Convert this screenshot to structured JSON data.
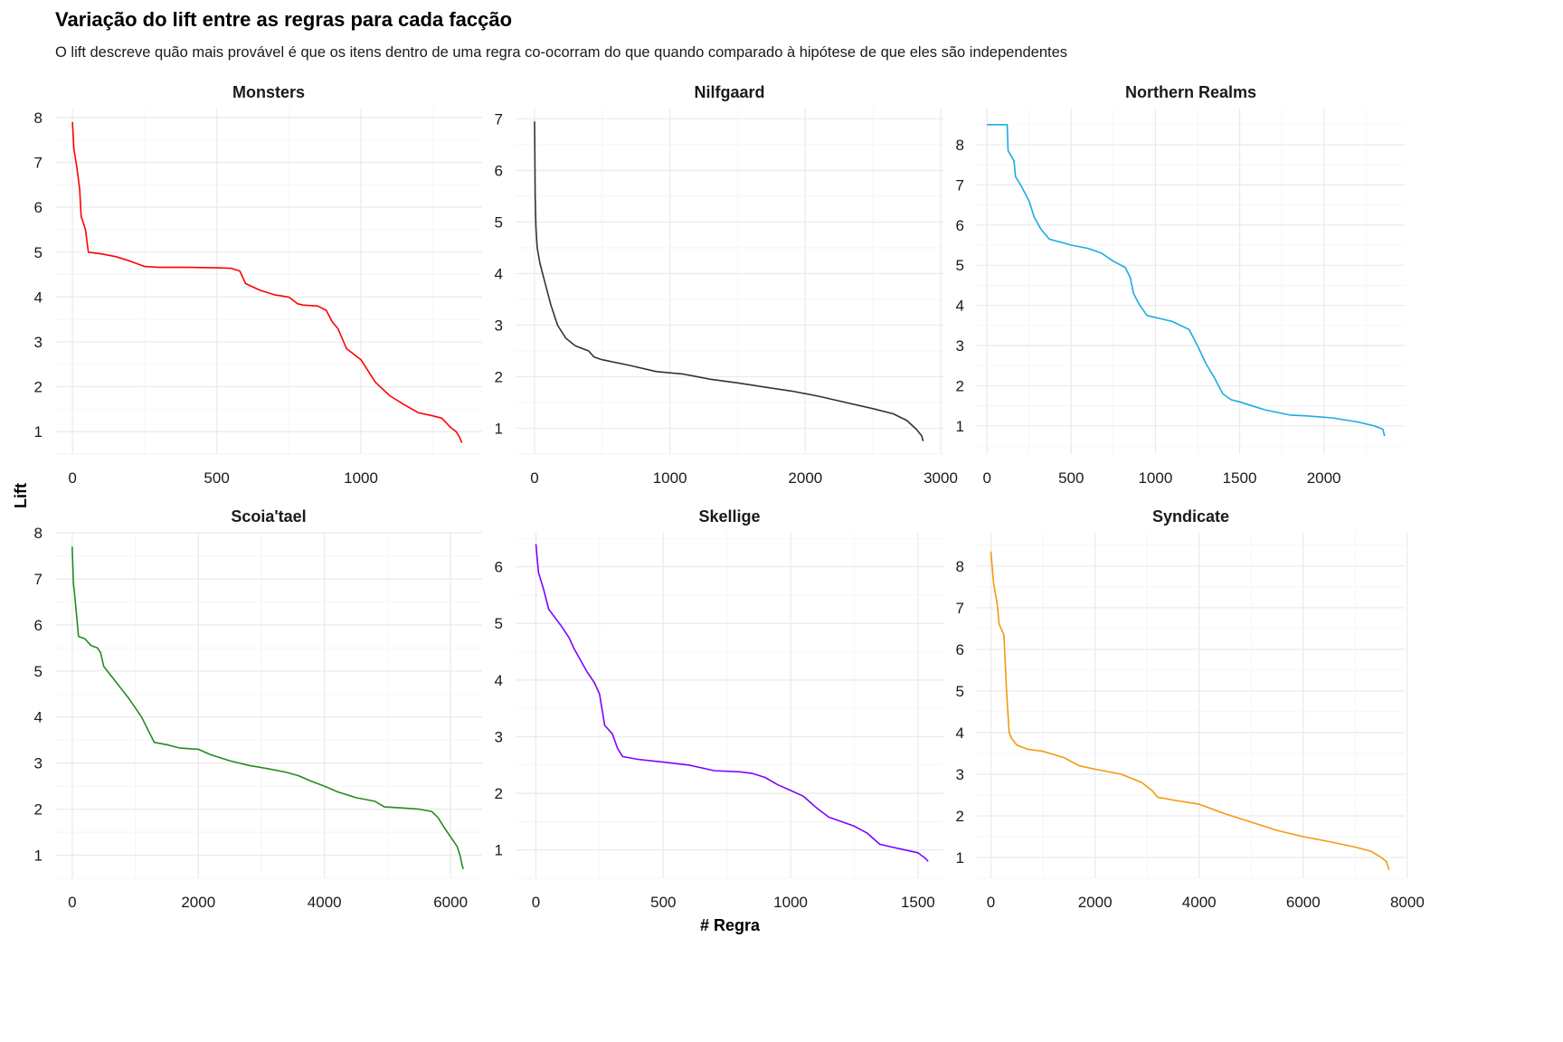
{
  "title": "Variação do lift entre as regras para cada facção",
  "subtitle": "O lift descreve quão mais provável é que os itens dentro de uma regra co-ocorram do que quando comparado à hipótese de que eles são independentes",
  "chart_data": {
    "type": "line",
    "layout": "facet-grid-2x3",
    "xlabel": "# Regra",
    "ylabel": "Lift",
    "grid": true,
    "facets": [
      {
        "name": "Monsters",
        "color": "#ff0000",
        "xlim": [
          -60,
          1420
        ],
        "ylim": [
          0.5,
          8.2
        ],
        "xticks": [
          0,
          500,
          1000
        ],
        "yticks": [
          1,
          2,
          3,
          4,
          5,
          6,
          7,
          8
        ],
        "points": [
          [
            0,
            7.9
          ],
          [
            5,
            7.3
          ],
          [
            15,
            6.9
          ],
          [
            25,
            6.4
          ],
          [
            30,
            5.8
          ],
          [
            45,
            5.5
          ],
          [
            55,
            5.0
          ],
          [
            100,
            4.96
          ],
          [
            150,
            4.9
          ],
          [
            200,
            4.8
          ],
          [
            250,
            4.68
          ],
          [
            300,
            4.66
          ],
          [
            400,
            4.66
          ],
          [
            500,
            4.65
          ],
          [
            550,
            4.64
          ],
          [
            580,
            4.58
          ],
          [
            600,
            4.3
          ],
          [
            650,
            4.15
          ],
          [
            700,
            4.05
          ],
          [
            750,
            4.0
          ],
          [
            780,
            3.85
          ],
          [
            800,
            3.82
          ],
          [
            850,
            3.8
          ],
          [
            880,
            3.7
          ],
          [
            900,
            3.45
          ],
          [
            920,
            3.3
          ],
          [
            950,
            2.85
          ],
          [
            1000,
            2.6
          ],
          [
            1050,
            2.1
          ],
          [
            1100,
            1.8
          ],
          [
            1150,
            1.6
          ],
          [
            1200,
            1.42
          ],
          [
            1250,
            1.35
          ],
          [
            1280,
            1.3
          ],
          [
            1310,
            1.1
          ],
          [
            1330,
            1.0
          ],
          [
            1340,
            0.9
          ],
          [
            1350,
            0.75
          ]
        ]
      },
      {
        "name": "Nilfgaard",
        "color": "#333333",
        "xlim": [
          -140,
          3020
        ],
        "ylim": [
          0.5,
          7.2
        ],
        "xticks": [
          0,
          1000,
          2000,
          3000
        ],
        "yticks": [
          1,
          2,
          3,
          4,
          5,
          6,
          7
        ],
        "points": [
          [
            0,
            6.95
          ],
          [
            5,
            5.5
          ],
          [
            10,
            4.9
          ],
          [
            20,
            4.5
          ],
          [
            40,
            4.2
          ],
          [
            80,
            3.8
          ],
          [
            120,
            3.4
          ],
          [
            170,
            3.0
          ],
          [
            230,
            2.75
          ],
          [
            300,
            2.6
          ],
          [
            400,
            2.5
          ],
          [
            440,
            2.38
          ],
          [
            500,
            2.33
          ],
          [
            700,
            2.22
          ],
          [
            900,
            2.1
          ],
          [
            1100,
            2.05
          ],
          [
            1300,
            1.95
          ],
          [
            1500,
            1.88
          ],
          [
            1700,
            1.8
          ],
          [
            1900,
            1.72
          ],
          [
            2100,
            1.62
          ],
          [
            2300,
            1.5
          ],
          [
            2500,
            1.38
          ],
          [
            2650,
            1.28
          ],
          [
            2750,
            1.15
          ],
          [
            2820,
            0.98
          ],
          [
            2860,
            0.85
          ],
          [
            2870,
            0.75
          ]
        ]
      },
      {
        "name": "Northern Realms",
        "color": "#1aace2",
        "xlim": [
          -60,
          2480
        ],
        "ylim": [
          0.3,
          8.9
        ],
        "xticks": [
          0,
          500,
          1000,
          1500,
          2000
        ],
        "yticks": [
          1,
          2,
          3,
          4,
          5,
          6,
          7,
          8
        ],
        "points": [
          [
            0,
            8.5
          ],
          [
            120,
            8.5
          ],
          [
            125,
            7.85
          ],
          [
            160,
            7.6
          ],
          [
            170,
            7.2
          ],
          [
            200,
            7.0
          ],
          [
            250,
            6.6
          ],
          [
            280,
            6.2
          ],
          [
            320,
            5.9
          ],
          [
            370,
            5.65
          ],
          [
            500,
            5.5
          ],
          [
            600,
            5.42
          ],
          [
            680,
            5.3
          ],
          [
            750,
            5.1
          ],
          [
            820,
            4.95
          ],
          [
            850,
            4.7
          ],
          [
            870,
            4.3
          ],
          [
            900,
            4.05
          ],
          [
            950,
            3.75
          ],
          [
            1100,
            3.6
          ],
          [
            1200,
            3.4
          ],
          [
            1250,
            3.0
          ],
          [
            1300,
            2.55
          ],
          [
            1350,
            2.2
          ],
          [
            1400,
            1.8
          ],
          [
            1450,
            1.65
          ],
          [
            1500,
            1.6
          ],
          [
            1650,
            1.4
          ],
          [
            1800,
            1.27
          ],
          [
            1900,
            1.25
          ],
          [
            2050,
            1.2
          ],
          [
            2200,
            1.1
          ],
          [
            2300,
            1.0
          ],
          [
            2350,
            0.92
          ],
          [
            2360,
            0.75
          ]
        ]
      },
      {
        "name": "Scoia'tael",
        "color": "#228b22",
        "xlim": [
          -270,
          6500
        ],
        "ylim": [
          0.5,
          8.0
        ],
        "xticks": [
          0,
          2000,
          4000,
          6000
        ],
        "yticks": [
          1,
          2,
          3,
          4,
          5,
          6,
          7,
          8
        ],
        "points": [
          [
            0,
            7.7
          ],
          [
            20,
            6.9
          ],
          [
            50,
            6.5
          ],
          [
            100,
            5.75
          ],
          [
            200,
            5.7
          ],
          [
            300,
            5.55
          ],
          [
            400,
            5.5
          ],
          [
            450,
            5.4
          ],
          [
            500,
            5.1
          ],
          [
            700,
            4.75
          ],
          [
            900,
            4.4
          ],
          [
            1100,
            4.0
          ],
          [
            1300,
            3.45
          ],
          [
            1500,
            3.4
          ],
          [
            1700,
            3.33
          ],
          [
            2000,
            3.3
          ],
          [
            2200,
            3.18
          ],
          [
            2500,
            3.05
          ],
          [
            2800,
            2.95
          ],
          [
            3100,
            2.88
          ],
          [
            3400,
            2.8
          ],
          [
            3600,
            2.72
          ],
          [
            3800,
            2.6
          ],
          [
            4000,
            2.5
          ],
          [
            4200,
            2.38
          ],
          [
            4500,
            2.25
          ],
          [
            4800,
            2.17
          ],
          [
            4950,
            2.05
          ],
          [
            5200,
            2.03
          ],
          [
            5500,
            2.0
          ],
          [
            5700,
            1.95
          ],
          [
            5800,
            1.82
          ],
          [
            5900,
            1.6
          ],
          [
            6000,
            1.4
          ],
          [
            6100,
            1.2
          ],
          [
            6150,
            1.0
          ],
          [
            6180,
            0.8
          ],
          [
            6200,
            0.7
          ]
        ]
      },
      {
        "name": "Skellige",
        "color": "#8000ff",
        "xlim": [
          -80,
          1600
        ],
        "ylim": [
          0.5,
          6.6
        ],
        "xticks": [
          0,
          500,
          1000,
          1500
        ],
        "yticks": [
          1,
          2,
          3,
          4,
          5,
          6
        ],
        "points": [
          [
            0,
            6.4
          ],
          [
            10,
            5.9
          ],
          [
            30,
            5.6
          ],
          [
            50,
            5.25
          ],
          [
            100,
            4.95
          ],
          [
            130,
            4.75
          ],
          [
            150,
            4.55
          ],
          [
            200,
            4.15
          ],
          [
            230,
            3.95
          ],
          [
            250,
            3.75
          ],
          [
            270,
            3.2
          ],
          [
            300,
            3.05
          ],
          [
            320,
            2.8
          ],
          [
            340,
            2.65
          ],
          [
            400,
            2.6
          ],
          [
            500,
            2.55
          ],
          [
            600,
            2.5
          ],
          [
            700,
            2.4
          ],
          [
            800,
            2.38
          ],
          [
            850,
            2.35
          ],
          [
            900,
            2.28
          ],
          [
            950,
            2.15
          ],
          [
            1000,
            2.05
          ],
          [
            1050,
            1.95
          ],
          [
            1100,
            1.75
          ],
          [
            1150,
            1.58
          ],
          [
            1200,
            1.5
          ],
          [
            1250,
            1.42
          ],
          [
            1300,
            1.3
          ],
          [
            1350,
            1.1
          ],
          [
            1400,
            1.05
          ],
          [
            1450,
            1.0
          ],
          [
            1500,
            0.95
          ],
          [
            1530,
            0.85
          ],
          [
            1540,
            0.8
          ]
        ]
      },
      {
        "name": "Syndicate",
        "color": "#f39a0d",
        "xlim": [
          -270,
          7950
        ],
        "ylim": [
          0.5,
          8.8
        ],
        "xticks": [
          0,
          2000,
          4000,
          6000,
          8000
        ],
        "yticks": [
          1,
          2,
          3,
          4,
          5,
          6,
          7,
          8
        ],
        "points": [
          [
            0,
            8.35
          ],
          [
            50,
            7.6
          ],
          [
            120,
            7.1
          ],
          [
            160,
            6.6
          ],
          [
            250,
            6.35
          ],
          [
            300,
            5.0
          ],
          [
            350,
            4.0
          ],
          [
            400,
            3.85
          ],
          [
            500,
            3.7
          ],
          [
            700,
            3.6
          ],
          [
            1000,
            3.55
          ],
          [
            1400,
            3.4
          ],
          [
            1700,
            3.2
          ],
          [
            2000,
            3.12
          ],
          [
            2500,
            3.0
          ],
          [
            2900,
            2.8
          ],
          [
            3100,
            2.6
          ],
          [
            3200,
            2.45
          ],
          [
            3500,
            2.38
          ],
          [
            4000,
            2.28
          ],
          [
            4500,
            2.05
          ],
          [
            5000,
            1.85
          ],
          [
            5500,
            1.65
          ],
          [
            6000,
            1.5
          ],
          [
            6500,
            1.38
          ],
          [
            7000,
            1.25
          ],
          [
            7300,
            1.15
          ],
          [
            7500,
            1.0
          ],
          [
            7600,
            0.9
          ],
          [
            7650,
            0.7
          ]
        ]
      }
    ]
  }
}
